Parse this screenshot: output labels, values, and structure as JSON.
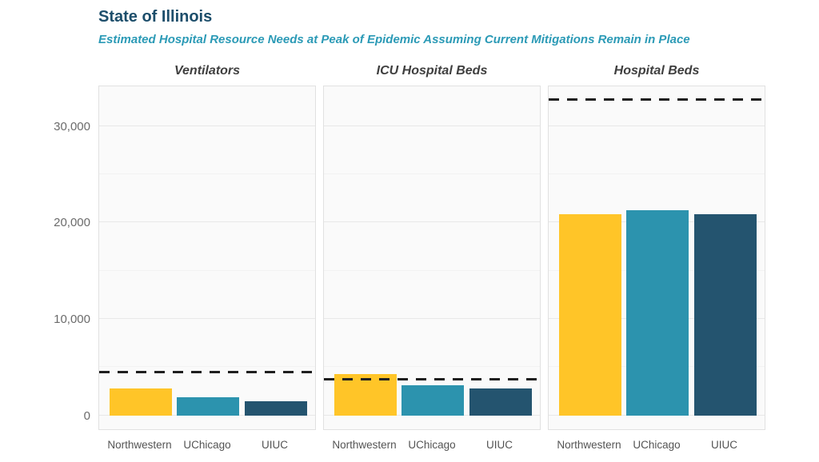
{
  "header": {
    "title": "State of Illinois",
    "subtitle": "Estimated Hospital Resource Needs at Peak of Epidemic Assuming Current Mitigations Remain in Place"
  },
  "chart_data": {
    "type": "bar",
    "title": "State of Illinois",
    "subtitle": "Estimated Hospital Resource Needs at Peak of Epidemic Assuming Current Mitigations Remain in Place",
    "categories": [
      "Northwestern",
      "UChicago",
      "UIUC"
    ],
    "facets": [
      {
        "title": "Ventilators",
        "values": [
          2820,
          1830,
          1470
        ],
        "capacity_line": 4400
      },
      {
        "title": "ICU Hospital Beds",
        "values": [
          4250,
          3080,
          2760
        ],
        "capacity_line": 3700
      },
      {
        "title": "Hospital Beds",
        "values": [
          20850,
          21250,
          20880
        ],
        "capacity_line": 32700
      }
    ],
    "series_colors": [
      "#FFC528",
      "#2C93AE",
      "#24546F"
    ],
    "capacity_line_style": "dashed",
    "capacity_line_color": "#1f1f1f",
    "ylabel": "",
    "xlabel": "",
    "y_ticks": [
      0,
      10000,
      20000,
      30000
    ],
    "y_tick_labels": [
      "0",
      "10,000",
      "20,000",
      "30,000"
    ],
    "y_minor_ticks": [
      5000,
      15000,
      25000
    ],
    "ylim": [
      -1450,
      34300
    ],
    "grid": true,
    "legend": false
  },
  "colors": {
    "title": "#1d4e6b",
    "subtitle": "#2b9ab6",
    "panel_background": "#fafafa",
    "panel_border": "#e1e1e1",
    "capacity_dash": "#1f1f1f"
  }
}
